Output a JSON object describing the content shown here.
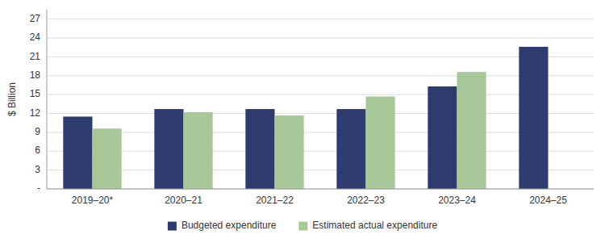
{
  "chart_data": {
    "type": "bar",
    "categories": [
      "2019–20*",
      "2020–21",
      "2021–22",
      "2022–23",
      "2023–24",
      "2024–25"
    ],
    "series": [
      {
        "name": "Budgeted expenditure",
        "color": "#2E3B6E",
        "values": [
          11.5,
          12.7,
          12.7,
          12.7,
          16.3,
          22.6
        ]
      },
      {
        "name": "Estimated actual expenditure",
        "color": "#A8C89A",
        "values": [
          9.6,
          12.2,
          11.7,
          14.7,
          18.6,
          null
        ]
      }
    ],
    "ylabel": "$ Billion",
    "ylim": [
      0,
      28.5
    ],
    "yticks": [
      {
        "value": 0,
        "label": "-"
      },
      3,
      6,
      9,
      12,
      15,
      18,
      21,
      24,
      27
    ],
    "grid": true,
    "legend": "bottom"
  }
}
